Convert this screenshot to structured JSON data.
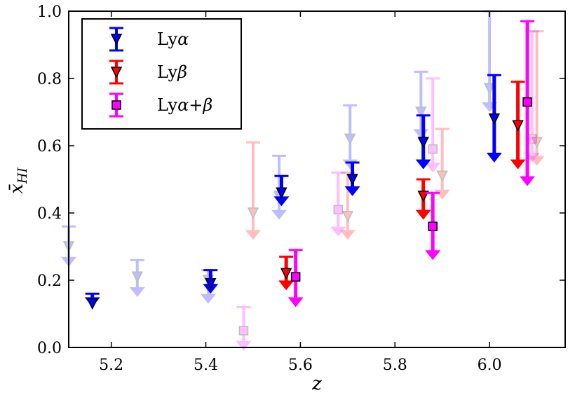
{
  "chart_data": {
    "type": "scatter",
    "xlabel": "z",
    "ylabel": "x̄HI",
    "ylabel_main": "x̄",
    "ylabel_sub": "HI",
    "xlim": [
      5.11,
      6.16
    ],
    "ylim": [
      0.0,
      1.0
    ],
    "xticks": [
      5.2,
      5.4,
      5.6,
      5.8,
      6.0
    ],
    "xtick_labels": [
      "5.2",
      "5.4",
      "5.6",
      "5.8",
      "6.0"
    ],
    "yticks": [
      0.0,
      0.2,
      0.4,
      0.6,
      0.8,
      1.0
    ],
    "ytick_labels": [
      "0.0",
      "0.2",
      "0.4",
      "0.6",
      "0.8",
      "1.0"
    ],
    "legend_position": "top-left",
    "colors": {
      "lya": "#0000ff",
      "lyb": "#ff0000",
      "lyab": "#ff00ff"
    },
    "series": [
      {
        "name": "Lyα",
        "key": "lya",
        "label_main": "Ly",
        "label_greek": "α",
        "marker": "triangle-down",
        "points": [
          {
            "x": 5.16,
            "y": 0.13,
            "err_up": 0.03,
            "lower_to": 0.12,
            "faded": false
          },
          {
            "x": 5.41,
            "y": 0.19,
            "err_up": 0.04,
            "lower_to": 0.16,
            "faded": false
          },
          {
            "x": 5.56,
            "y": 0.46,
            "err_up": 0.05,
            "lower_to": 0.42,
            "faded": false
          },
          {
            "x": 5.71,
            "y": 0.5,
            "err_up": 0.05,
            "lower_to": 0.45,
            "faded": false
          },
          {
            "x": 5.86,
            "y": 0.61,
            "err_up": 0.08,
            "lower_to": 0.53,
            "faded": false
          },
          {
            "x": 6.01,
            "y": 0.68,
            "err_up": 0.13,
            "lower_to": 0.55,
            "faded": false
          },
          {
            "x": 5.11,
            "y": 0.3,
            "err_up": 0.06,
            "lower_to": 0.24,
            "faded": true
          },
          {
            "x": 5.255,
            "y": 0.21,
            "err_up": 0.05,
            "lower_to": 0.15,
            "faded": true
          },
          {
            "x": 5.405,
            "y": 0.2,
            "err_up": 0.03,
            "lower_to": 0.13,
            "faded": true
          },
          {
            "x": 5.555,
            "y": 0.45,
            "err_up": 0.12,
            "lower_to": 0.38,
            "faded": true
          },
          {
            "x": 5.705,
            "y": 0.62,
            "err_up": 0.1,
            "lower_to": 0.53,
            "faded": true
          },
          {
            "x": 5.855,
            "y": 0.7,
            "err_up": 0.12,
            "lower_to": 0.62,
            "faded": true
          },
          {
            "x": 6.0,
            "y": 0.77,
            "err_up": 0.23,
            "lower_to": 0.7,
            "faded": true
          }
        ]
      },
      {
        "name": "Lyβ",
        "key": "lyb",
        "label_main": "Ly",
        "label_greek": "β",
        "marker": "triangle-down",
        "points": [
          {
            "x": 5.57,
            "y": 0.22,
            "err_up": 0.05,
            "lower_to": 0.17,
            "faded": false
          },
          {
            "x": 5.86,
            "y": 0.45,
            "err_up": 0.05,
            "lower_to": 0.38,
            "faded": false
          },
          {
            "x": 6.06,
            "y": 0.66,
            "err_up": 0.13,
            "lower_to": 0.53,
            "faded": false
          },
          {
            "x": 5.5,
            "y": 0.4,
            "err_up": 0.21,
            "lower_to": 0.32,
            "faded": true
          },
          {
            "x": 5.7,
            "y": 0.39,
            "err_up": 0.13,
            "lower_to": 0.32,
            "faded": true
          },
          {
            "x": 5.9,
            "y": 0.51,
            "err_up": 0.14,
            "lower_to": 0.44,
            "faded": true
          },
          {
            "x": 6.1,
            "y": 0.61,
            "err_up": 0.33,
            "lower_to": 0.54,
            "faded": true
          }
        ]
      },
      {
        "name": "Lyα+β",
        "key": "lyab",
        "label_main": "Ly",
        "label_greek": "α+β",
        "marker": "square",
        "points": [
          {
            "x": 5.59,
            "y": 0.21,
            "err_up": 0.08,
            "lower_to": 0.12,
            "faded": false
          },
          {
            "x": 5.88,
            "y": 0.36,
            "err_up": 0.1,
            "lower_to": 0.26,
            "faded": false
          },
          {
            "x": 6.08,
            "y": 0.73,
            "err_up": 0.24,
            "lower_to": 0.48,
            "faded": false
          },
          {
            "x": 5.48,
            "y": 0.05,
            "err_up": 0.07,
            "lower_to": -0.02,
            "faded": true
          },
          {
            "x": 5.68,
            "y": 0.41,
            "err_up": 0.11,
            "lower_to": 0.33,
            "faded": true
          },
          {
            "x": 5.88,
            "y": 0.59,
            "err_up": 0.21,
            "lower_to": 0.52,
            "faded": true
          },
          {
            "x": 6.09,
            "y": 0.62,
            "err_up": 0.32,
            "lower_to": 0.55,
            "faded": true
          }
        ]
      }
    ]
  }
}
